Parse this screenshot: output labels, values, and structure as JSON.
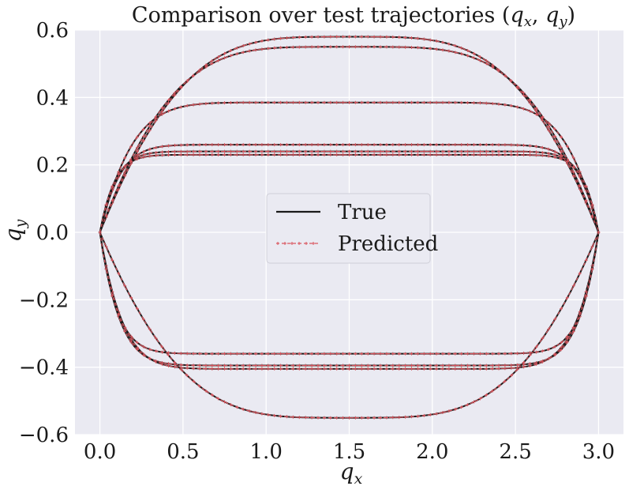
{
  "chart_data": {
    "type": "line",
    "title": "Comparison over test trajectories (q_x, q_y)",
    "xlabel": "q_x",
    "ylabel": "q_y",
    "xlim": [
      -0.15,
      3.15
    ],
    "ylim": [
      -0.6,
      0.6
    ],
    "xticks": [
      0.0,
      0.5,
      1.0,
      1.5,
      2.0,
      2.5,
      3.0
    ],
    "yticks": [
      -0.6,
      -0.4,
      -0.2,
      0.0,
      0.2,
      0.4,
      0.6
    ],
    "xtick_labels": [
      "0.0",
      "0.5",
      "1.0",
      "1.5",
      "2.0",
      "2.5",
      "3.0"
    ],
    "ytick_labels": [
      "−0.6",
      "−0.4",
      "−0.2",
      "0.0",
      "0.2",
      "0.4",
      "0.6"
    ],
    "grid": true,
    "legend_position": "center",
    "legend": [
      {
        "name": "True",
        "color": "#1a1a1a",
        "style": "solid"
      },
      {
        "name": "Predicted",
        "color": "#d9555e",
        "style": "dashed-plus"
      }
    ],
    "colors": {
      "background": "#eaeaf2",
      "grid": "#ffffff",
      "true": "#1a1a1a",
      "predicted": "#d9555e"
    },
    "series": [
      {
        "x_range": [
          0.0,
          3.0
        ],
        "peak": 0.58,
        "flatness": 2.0
      },
      {
        "x_range": [
          0.0,
          3.0
        ],
        "peak": 0.55,
        "flatness": 2.3
      },
      {
        "x_range": [
          0.0,
          3.0
        ],
        "peak": 0.385,
        "flatness": 5.0
      },
      {
        "x_range": [
          0.0,
          3.0
        ],
        "peak": 0.26,
        "flatness": 8.0
      },
      {
        "x_range": [
          0.0,
          3.0
        ],
        "peak": 0.24,
        "flatness": 10.0
      },
      {
        "x_range": [
          0.0,
          3.0
        ],
        "peak": 0.23,
        "flatness": 11.0
      },
      {
        "x_range": [
          0.0,
          3.0
        ],
        "peak": -0.55,
        "flatness": 2.0
      },
      {
        "x_range": [
          0.0,
          3.0
        ],
        "peak": -0.405,
        "flatness": 7.0
      },
      {
        "x_range": [
          0.0,
          3.0
        ],
        "peak": -0.395,
        "flatness": 8.0
      },
      {
        "x_range": [
          0.0,
          3.0
        ],
        "peak": -0.36,
        "flatness": 9.0
      }
    ]
  }
}
